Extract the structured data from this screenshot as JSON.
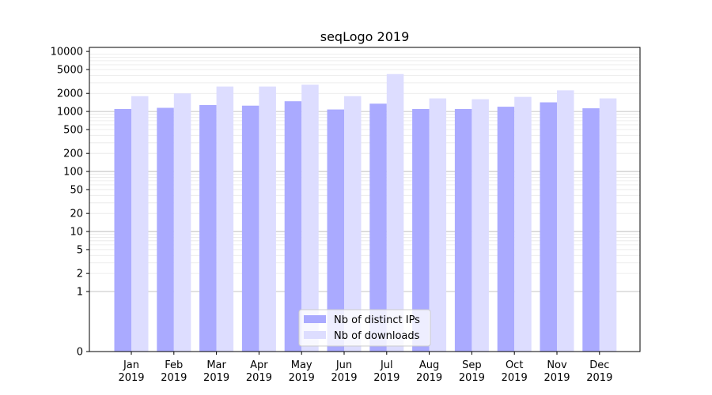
{
  "chart_data": {
    "type": "bar",
    "title": "seqLogo 2019",
    "xlabel": "",
    "ylabel": "",
    "yscale": "symlog",
    "ylim": [
      0,
      10000
    ],
    "y_ticks": [
      "0",
      "1",
      "2",
      "5",
      "10",
      "20",
      "50",
      "100",
      "200",
      "500",
      "1000",
      "2000",
      "5000",
      "10000"
    ],
    "y_tick_values": [
      0,
      1,
      2,
      5,
      10,
      20,
      50,
      100,
      200,
      500,
      1000,
      2000,
      5000,
      10000
    ],
    "grid": true,
    "legend_position": "bottom-center",
    "categories": [
      [
        "Jan",
        "2019"
      ],
      [
        "Feb",
        "2019"
      ],
      [
        "Mar",
        "2019"
      ],
      [
        "Apr",
        "2019"
      ],
      [
        "May",
        "2019"
      ],
      [
        "Jun",
        "2019"
      ],
      [
        "Jul",
        "2019"
      ],
      [
        "Aug",
        "2019"
      ],
      [
        "Sep",
        "2019"
      ],
      [
        "Oct",
        "2019"
      ],
      [
        "Nov",
        "2019"
      ],
      [
        "Dec",
        "2019"
      ]
    ],
    "series": [
      {
        "name": "Nb of distinct IPs",
        "color": "#aaaaff",
        "values": [
          1100,
          1150,
          1280,
          1250,
          1480,
          1080,
          1350,
          1100,
          1100,
          1200,
          1420,
          1130
        ]
      },
      {
        "name": "Nb of downloads",
        "color": "#ddddff",
        "values": [
          1800,
          2000,
          2600,
          2600,
          2800,
          1800,
          4200,
          1650,
          1600,
          1750,
          2250,
          1650
        ]
      }
    ]
  }
}
